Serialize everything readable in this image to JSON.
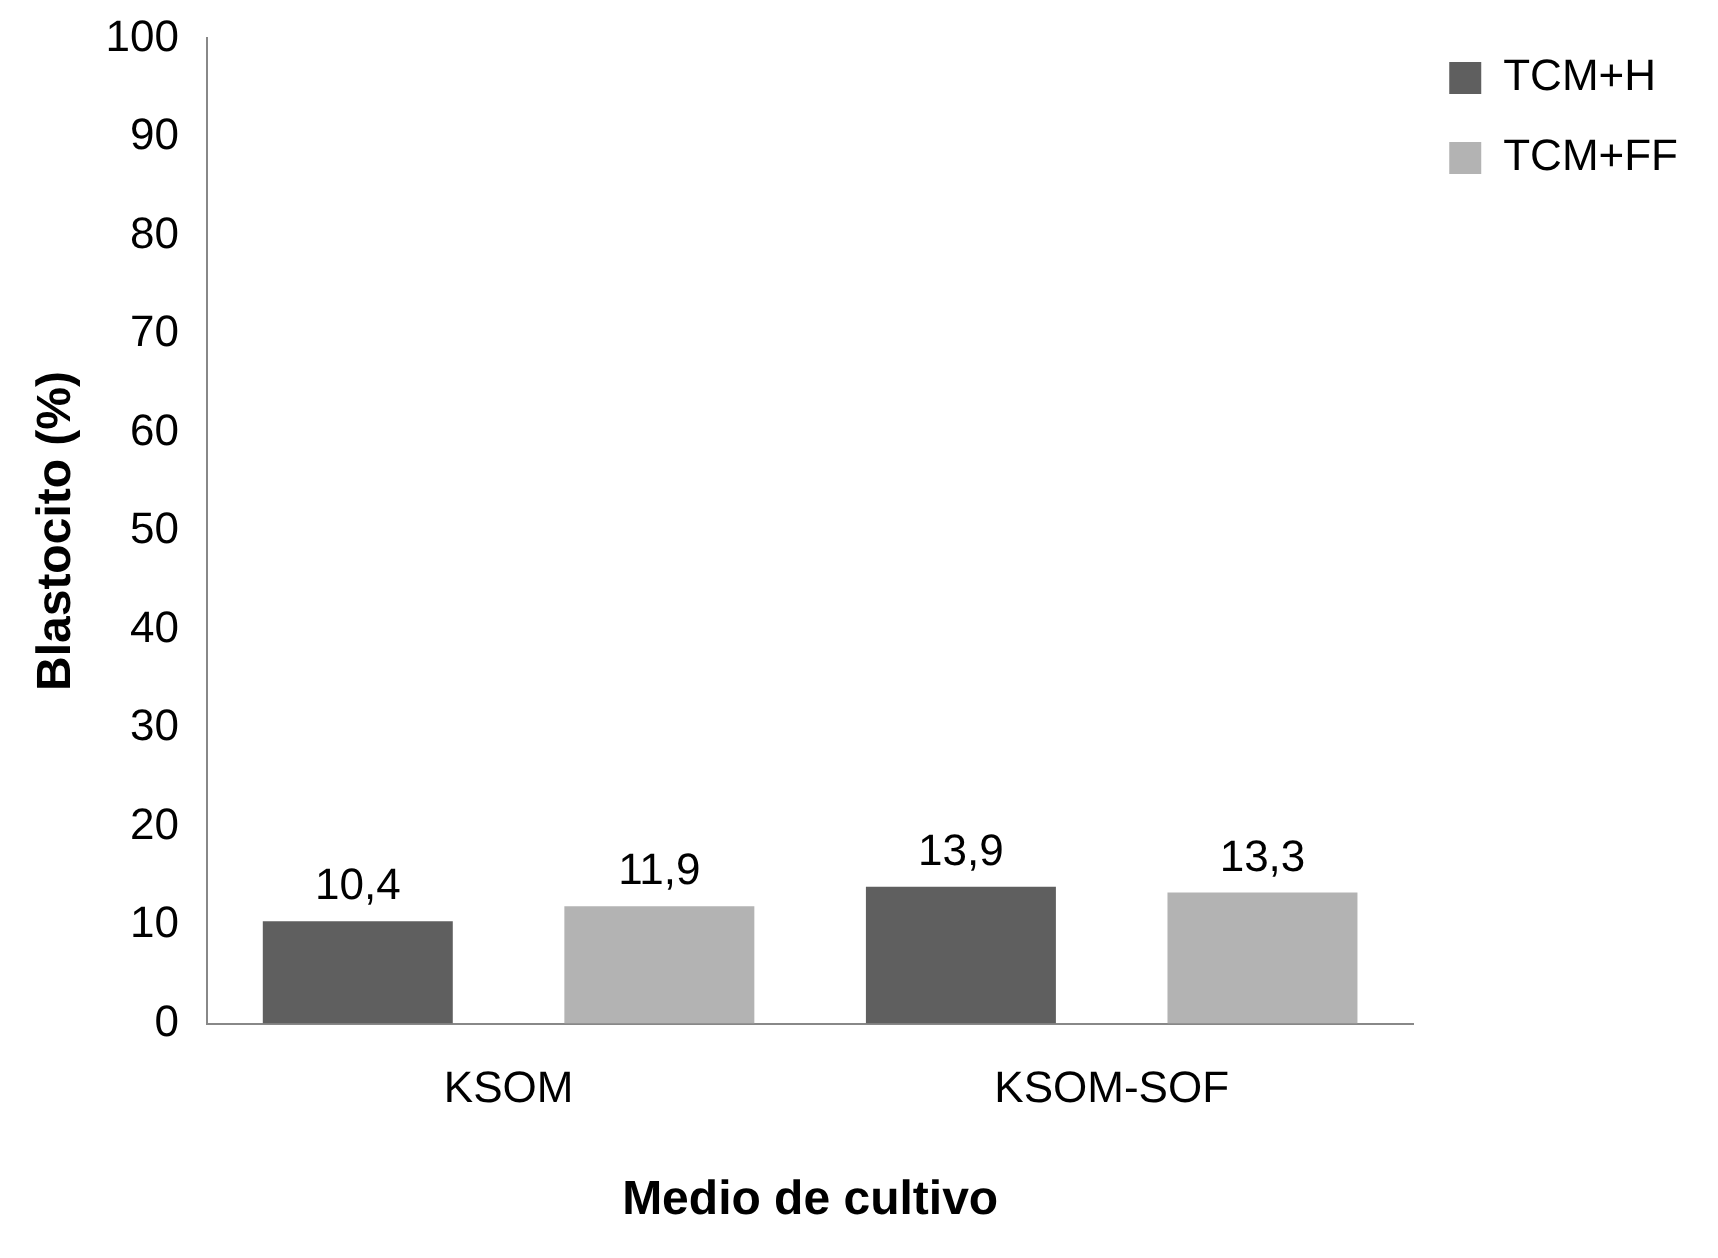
{
  "chart_data": {
    "type": "bar",
    "xlabel": "Medio de cultivo",
    "ylabel": "Blastocito (%)",
    "categories": [
      "KSOM",
      "KSOM-SOF"
    ],
    "series": [
      {
        "name": "TCM+H",
        "color": "#5f5f5f",
        "values": [
          10.4,
          13.9
        ],
        "value_labels": [
          "10,4",
          "13,9"
        ]
      },
      {
        "name": "TCM+FF",
        "color": "#b3b3b3",
        "values": [
          11.9,
          13.3
        ],
        "value_labels": [
          "11,9",
          "13,3"
        ]
      }
    ],
    "ylim": [
      0,
      100
    ],
    "yticks": [
      0,
      10,
      20,
      30,
      40,
      50,
      60,
      70,
      80,
      90,
      100
    ],
    "grid": false,
    "legend": "top right"
  }
}
